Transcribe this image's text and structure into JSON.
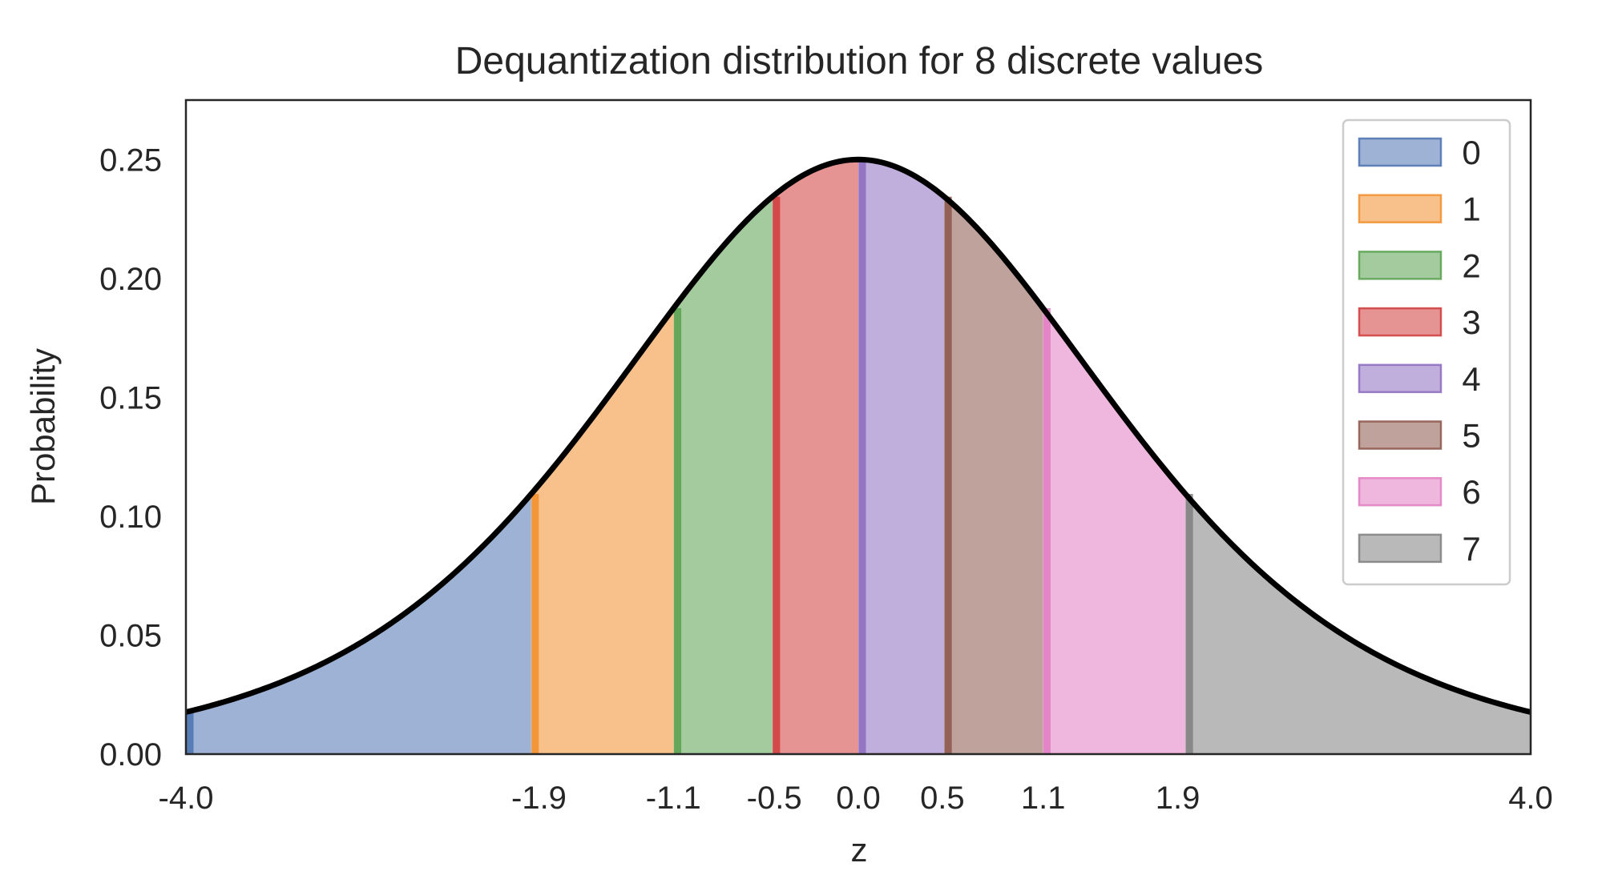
{
  "chart_data": {
    "type": "area",
    "title": "Dequantization distribution for 8 discrete values",
    "xlabel": "z",
    "ylabel": "Probability",
    "xlim": [
      -4.0,
      4.0
    ],
    "ylim": [
      0.0,
      0.275
    ],
    "x_ticks": [
      -4.0,
      -1.9,
      -1.1,
      -0.5,
      0.0,
      0.5,
      1.1,
      1.9,
      4.0
    ],
    "x_tick_labels": [
      "-4.0",
      "-1.9",
      "-1.1",
      "-0.5",
      "0.0",
      "0.5",
      "1.1",
      "1.9",
      "4.0"
    ],
    "y_ticks": [
      0.0,
      0.05,
      0.1,
      0.15,
      0.2,
      0.25
    ],
    "y_tick_labels": [
      "0.00",
      "0.05",
      "0.10",
      "0.15",
      "0.20",
      "0.25"
    ],
    "curve": {
      "description": "logistic density p(z) = 0.25 / cosh^2(z/2)",
      "peak": 0.25,
      "color": "#000000"
    },
    "grid": false,
    "legend_position": "top-right",
    "series": [
      {
        "name": "0",
        "x_start": -4.0,
        "x_end": -1.9459,
        "color": "#4c72b0"
      },
      {
        "name": "1",
        "x_start": -1.9459,
        "x_end": -1.0986,
        "color": "#f28e2b"
      },
      {
        "name": "2",
        "x_start": -1.0986,
        "x_end": -0.5108,
        "color": "#59a14f"
      },
      {
        "name": "3",
        "x_start": -0.5108,
        "x_end": 0.0,
        "color": "#d03b3b"
      },
      {
        "name": "4",
        "x_start": 0.0,
        "x_end": 0.5108,
        "color": "#8c6bc0"
      },
      {
        "name": "5",
        "x_start": 0.5108,
        "x_end": 1.0986,
        "color": "#8c564b"
      },
      {
        "name": "6",
        "x_start": 1.0986,
        "x_end": 1.9459,
        "color": "#e17cc2"
      },
      {
        "name": "7",
        "x_start": 1.9459,
        "x_end": 4.0,
        "color": "#7f7f7f"
      }
    ]
  }
}
